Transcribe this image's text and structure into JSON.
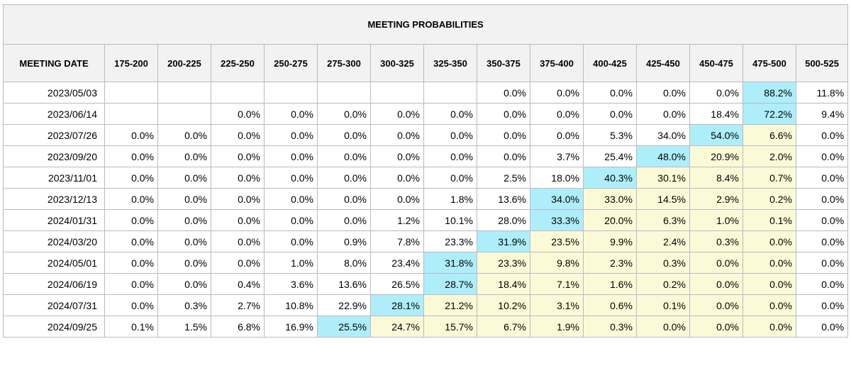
{
  "title": "MEETING PROBABILITIES",
  "columns": [
    "MEETING DATE",
    "175-200",
    "200-225",
    "225-250",
    "250-275",
    "275-300",
    "300-325",
    "325-350",
    "350-375",
    "375-400",
    "400-425",
    "425-450",
    "450-475",
    "475-500",
    "500-525"
  ],
  "rows": [
    {
      "date": "2023/05/03",
      "values": [
        "",
        "",
        "",
        "",
        "",
        "",
        "",
        "0.0%",
        "0.0%",
        "0.0%",
        "0.0%",
        "0.0%",
        "88.2%",
        "11.8%"
      ],
      "highlight": [
        0,
        0,
        0,
        0,
        0,
        0,
        0,
        0,
        0,
        0,
        0,
        0,
        2,
        0
      ]
    },
    {
      "date": "2023/06/14",
      "values": [
        "",
        "",
        "0.0%",
        "0.0%",
        "0.0%",
        "0.0%",
        "0.0%",
        "0.0%",
        "0.0%",
        "0.0%",
        "0.0%",
        "18.4%",
        "72.2%",
        "9.4%"
      ],
      "highlight": [
        0,
        0,
        0,
        0,
        0,
        0,
        0,
        0,
        0,
        0,
        0,
        0,
        2,
        0
      ]
    },
    {
      "date": "2023/07/26",
      "values": [
        "0.0%",
        "0.0%",
        "0.0%",
        "0.0%",
        "0.0%",
        "0.0%",
        "0.0%",
        "0.0%",
        "0.0%",
        "5.3%",
        "34.0%",
        "54.0%",
        "6.6%",
        "0.0%"
      ],
      "highlight": [
        0,
        0,
        0,
        0,
        0,
        0,
        0,
        0,
        0,
        0,
        0,
        2,
        1,
        0
      ]
    },
    {
      "date": "2023/09/20",
      "values": [
        "0.0%",
        "0.0%",
        "0.0%",
        "0.0%",
        "0.0%",
        "0.0%",
        "0.0%",
        "0.0%",
        "3.7%",
        "25.4%",
        "48.0%",
        "20.9%",
        "2.0%",
        "0.0%"
      ],
      "highlight": [
        0,
        0,
        0,
        0,
        0,
        0,
        0,
        0,
        0,
        0,
        2,
        1,
        1,
        0
      ]
    },
    {
      "date": "2023/11/01",
      "values": [
        "0.0%",
        "0.0%",
        "0.0%",
        "0.0%",
        "0.0%",
        "0.0%",
        "0.0%",
        "2.5%",
        "18.0%",
        "40.3%",
        "30.1%",
        "8.4%",
        "0.7%",
        "0.0%"
      ],
      "highlight": [
        0,
        0,
        0,
        0,
        0,
        0,
        0,
        0,
        0,
        2,
        1,
        1,
        1,
        0
      ]
    },
    {
      "date": "2023/12/13",
      "values": [
        "0.0%",
        "0.0%",
        "0.0%",
        "0.0%",
        "0.0%",
        "0.0%",
        "1.8%",
        "13.6%",
        "34.0%",
        "33.0%",
        "14.5%",
        "2.9%",
        "0.2%",
        "0.0%"
      ],
      "highlight": [
        0,
        0,
        0,
        0,
        0,
        0,
        0,
        0,
        2,
        1,
        1,
        1,
        1,
        0
      ]
    },
    {
      "date": "2024/01/31",
      "values": [
        "0.0%",
        "0.0%",
        "0.0%",
        "0.0%",
        "0.0%",
        "1.2%",
        "10.1%",
        "28.0%",
        "33.3%",
        "20.0%",
        "6.3%",
        "1.0%",
        "0.1%",
        "0.0%"
      ],
      "highlight": [
        0,
        0,
        0,
        0,
        0,
        0,
        0,
        0,
        2,
        1,
        1,
        1,
        1,
        0
      ]
    },
    {
      "date": "2024/03/20",
      "values": [
        "0.0%",
        "0.0%",
        "0.0%",
        "0.0%",
        "0.9%",
        "7.8%",
        "23.3%",
        "31.9%",
        "23.5%",
        "9.9%",
        "2.4%",
        "0.3%",
        "0.0%",
        "0.0%"
      ],
      "highlight": [
        0,
        0,
        0,
        0,
        0,
        0,
        0,
        2,
        1,
        1,
        1,
        1,
        1,
        0
      ]
    },
    {
      "date": "2024/05/01",
      "values": [
        "0.0%",
        "0.0%",
        "0.0%",
        "1.0%",
        "8.0%",
        "23.4%",
        "31.8%",
        "23.3%",
        "9.8%",
        "2.3%",
        "0.3%",
        "0.0%",
        "0.0%",
        "0.0%"
      ],
      "highlight": [
        0,
        0,
        0,
        0,
        0,
        0,
        2,
        1,
        1,
        1,
        1,
        1,
        1,
        0
      ]
    },
    {
      "date": "2024/06/19",
      "values": [
        "0.0%",
        "0.0%",
        "0.4%",
        "3.6%",
        "13.6%",
        "26.5%",
        "28.7%",
        "18.4%",
        "7.1%",
        "1.6%",
        "0.2%",
        "0.0%",
        "0.0%",
        "0.0%"
      ],
      "highlight": [
        0,
        0,
        0,
        0,
        0,
        0,
        2,
        1,
        1,
        1,
        1,
        1,
        1,
        0
      ]
    },
    {
      "date": "2024/07/31",
      "values": [
        "0.0%",
        "0.3%",
        "2.7%",
        "10.8%",
        "22.9%",
        "28.1%",
        "21.2%",
        "10.2%",
        "3.1%",
        "0.6%",
        "0.1%",
        "0.0%",
        "0.0%",
        "0.0%"
      ],
      "highlight": [
        0,
        0,
        0,
        0,
        0,
        2,
        1,
        1,
        1,
        1,
        1,
        1,
        1,
        0
      ]
    },
    {
      "date": "2024/09/25",
      "values": [
        "0.1%",
        "1.5%",
        "6.8%",
        "16.9%",
        "25.5%",
        "24.7%",
        "15.7%",
        "6.7%",
        "1.9%",
        "0.3%",
        "0.0%",
        "0.0%",
        "0.0%",
        "0.0%"
      ],
      "highlight": [
        0,
        0,
        0,
        0,
        2,
        1,
        1,
        1,
        1,
        1,
        1,
        1,
        1,
        0
      ]
    }
  ],
  "colors": {
    "highlight_max": "#aeeefb",
    "highlight_range": "#fbfad7",
    "header_bg": "#f2f2f2",
    "border": "#b9b9c9"
  }
}
